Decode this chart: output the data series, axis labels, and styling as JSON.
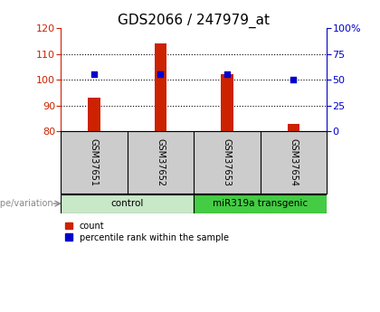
{
  "title": "GDS2066 / 247979_at",
  "samples": [
    "GSM37651",
    "GSM37652",
    "GSM37653",
    "GSM37654"
  ],
  "count_values": [
    93,
    114,
    102,
    83
  ],
  "percentile_values": [
    55,
    55,
    55,
    50
  ],
  "ylim_left": [
    80,
    120
  ],
  "ylim_right": [
    0,
    100
  ],
  "yticks_left": [
    80,
    90,
    100,
    110,
    120
  ],
  "yticks_right": [
    0,
    25,
    50,
    75,
    100
  ],
  "ytick_labels_right": [
    "0",
    "25",
    "50",
    "75",
    "100%"
  ],
  "bar_color": "#cc2200",
  "point_color": "#0000cc",
  "grid_color": "#000000",
  "groups": [
    {
      "label": "control",
      "samples": [
        0,
        1
      ],
      "color": "#c8e8c8"
    },
    {
      "label": "miR319a transgenic",
      "samples": [
        2,
        3
      ],
      "color": "#44cc44"
    }
  ],
  "genotype_label": "genotype/variation",
  "legend_items": [
    "count",
    "percentile rank within the sample"
  ],
  "background_color": "#ffffff",
  "plot_bg_color": "#ffffff",
  "sample_label_bg": "#cccccc",
  "title_fontsize": 11,
  "axis_fontsize": 8,
  "bar_width": 0.18
}
